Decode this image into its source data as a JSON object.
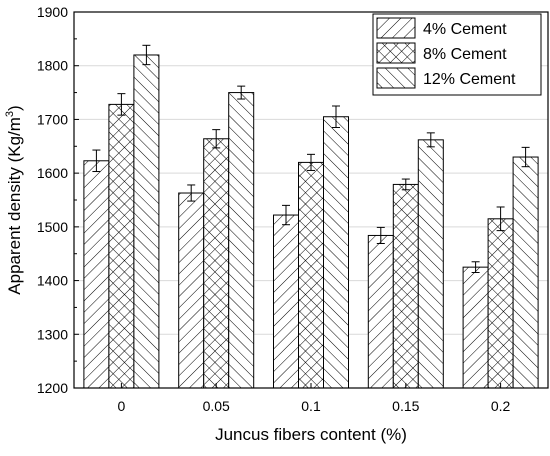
{
  "chart_data": {
    "type": "bar",
    "title": "",
    "xlabel": "Juncus fibers content (%)",
    "ylabel_main": "Apparent density (Kg/m",
    "ylabel_sup": "3",
    "ylabel_close": ")",
    "categories": [
      "0",
      "0.05",
      "0.1",
      "0.15",
      "0.2"
    ],
    "ylim": [
      1200,
      1900
    ],
    "yticks": [
      1200,
      1300,
      1400,
      1500,
      1600,
      1700,
      1800,
      1900
    ],
    "grid": true,
    "legend_position": "top-right",
    "series": [
      {
        "name": "4% Cement",
        "pattern": "diagonal-forward",
        "values": [
          1623,
          1563,
          1522,
          1484,
          1425
        ],
        "errors": [
          20,
          15,
          18,
          15,
          10
        ]
      },
      {
        "name": "8% Cement",
        "pattern": "crosshatch",
        "values": [
          1728,
          1664,
          1620,
          1579,
          1515
        ],
        "errors": [
          20,
          17,
          15,
          10,
          22
        ]
      },
      {
        "name": "12% Cement",
        "pattern": "diagonal-backward",
        "values": [
          1820,
          1750,
          1705,
          1662,
          1630
        ],
        "errors": [
          18,
          12,
          20,
          13,
          18
        ]
      }
    ],
    "colors": {
      "bar_fill": "#ffffff",
      "stroke": "#000000",
      "grid": "#d9d9d9"
    }
  }
}
